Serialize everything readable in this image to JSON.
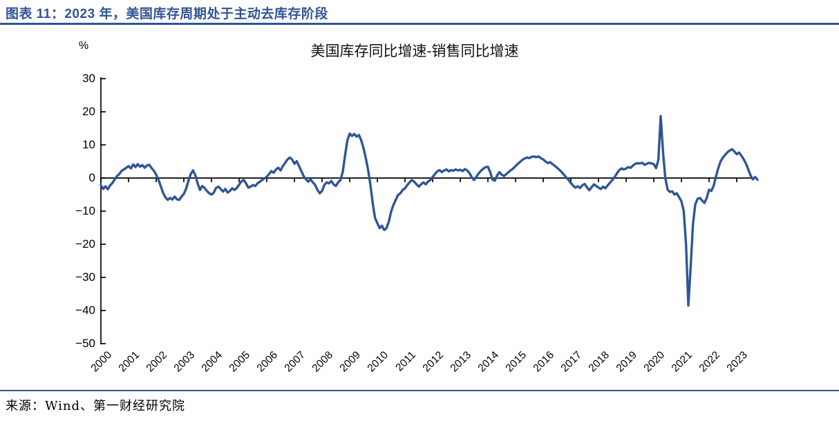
{
  "header": {
    "title": "图表 11：2023 年，美国库存周期处于主动去库存阶段"
  },
  "footer": {
    "source": "来源：Wind、第一财经研究院"
  },
  "colors": {
    "accent_blue": "#2F5496",
    "line_blue": "#2F5597",
    "axis_black": "#000000"
  },
  "chart_data": {
    "type": "line",
    "title": "美国库存同比增速-销售同比增速",
    "unit_label": "%",
    "series_name": "美国库存同比增速-销售同比增速",
    "x_start": "2000-01",
    "frequency": "monthly",
    "x_tick_labels": [
      "2000",
      "2001",
      "2002",
      "2003",
      "2004",
      "2005",
      "2006",
      "2007",
      "2008",
      "2009",
      "2010",
      "2011",
      "2012",
      "2013",
      "2014",
      "2015",
      "2016",
      "2017",
      "2018",
      "2019",
      "2020",
      "2021",
      "2022",
      "2023"
    ],
    "y_ticks": [
      30,
      20,
      10,
      0,
      -10,
      -20,
      -30,
      -40,
      -50
    ],
    "ylim": [
      -50,
      30
    ],
    "grid": false,
    "legend": false,
    "line_color": "#2F5597",
    "values": [
      -2.2,
      -3.3,
      -2.5,
      -3.4,
      -2.2,
      -1.5,
      -0.4,
      0.6,
      1.2,
      2.2,
      2.6,
      3.1,
      3.6,
      2.9,
      4.1,
      3.3,
      4.2,
      3.4,
      3.9,
      3.1,
      3.8,
      4.0,
      3.0,
      2.2,
      1.0,
      -0.5,
      -2.5,
      -4.5,
      -5.8,
      -6.6,
      -6.0,
      -6.5,
      -5.6,
      -6.4,
      -6.6,
      -5.6,
      -4.8,
      -3.2,
      -0.8,
      1.2,
      2.3,
      0.8,
      -1.6,
      -3.6,
      -2.4,
      -3.0,
      -3.9,
      -4.6,
      -5.0,
      -4.4,
      -3.0,
      -2.6,
      -3.3,
      -4.1,
      -3.3,
      -4.4,
      -3.9,
      -3.1,
      -3.6,
      -3.0,
      -2.0,
      -1.0,
      -0.6,
      -1.6,
      -2.9,
      -2.6,
      -2.1,
      -2.4,
      -1.6,
      -1.1,
      -0.6,
      -0.1,
      0.4,
      1.2,
      2.1,
      1.6,
      2.6,
      3.1,
      2.3,
      3.6,
      4.6,
      5.6,
      6.2,
      5.6,
      4.3,
      5.1,
      3.6,
      2.1,
      0.6,
      -0.4,
      -1.1,
      -0.4,
      -1.3,
      -2.1,
      -3.6,
      -4.6,
      -3.9,
      -2.1,
      -1.3,
      -1.6,
      -0.9,
      -1.9,
      -2.4,
      -1.3,
      -0.6,
      1.9,
      6.9,
      11.4,
      13.4,
      12.7,
      13.3,
      12.5,
      13.0,
      11.4,
      9.0,
      6.0,
      2.4,
      -2.1,
      -7.6,
      -12.1,
      -13.6,
      -15.1,
      -14.4,
      -15.7,
      -15.1,
      -13.1,
      -10.1,
      -8.1,
      -6.6,
      -5.1,
      -4.6,
      -3.6,
      -3.1,
      -2.1,
      -1.3,
      -0.6,
      -1.1,
      -1.9,
      -2.6,
      -1.9,
      -1.3,
      -1.9,
      -1.1,
      -0.6,
      0.3,
      1.2,
      2.0,
      2.4,
      1.8,
      2.3,
      2.6,
      2.0,
      2.4,
      2.2,
      2.6,
      2.3,
      2.5,
      2.1,
      2.7,
      2.3,
      1.5,
      0.2,
      -0.6,
      0.4,
      1.4,
      2.2,
      2.8,
      3.3,
      3.4,
      1.8,
      -0.5,
      -0.8,
      0.8,
      1.8,
      1.0,
      0.6,
      1.2,
      1.8,
      2.4,
      2.9,
      3.6,
      4.3,
      4.9,
      5.5,
      5.9,
      6.2,
      6.0,
      6.4,
      6.5,
      6.3,
      6.5,
      6.0,
      5.6,
      5.0,
      4.5,
      4.8,
      4.2,
      3.7,
      3.1,
      2.5,
      1.8,
      1.0,
      0.2,
      -0.6,
      -1.5,
      -2.3,
      -2.9,
      -2.5,
      -3.0,
      -2.2,
      -1.8,
      -2.8,
      -3.7,
      -2.8,
      -1.9,
      -2.4,
      -2.9,
      -3.3,
      -2.6,
      -3.1,
      -2.2,
      -1.4,
      -0.6,
      0.3,
      1.4,
      2.4,
      2.9,
      2.6,
      2.9,
      3.3,
      3.1,
      3.8,
      4.3,
      4.5,
      4.4,
      4.6,
      4.0,
      4.3,
      4.6,
      4.4,
      4.2,
      3.0,
      5.5,
      18.7,
      8.0,
      0.0,
      -3.5,
      -4.2,
      -4.0,
      -5.0,
      -4.6,
      -5.8,
      -7.0,
      -10.0,
      -20.0,
      -38.5,
      -27.0,
      -14.0,
      -8.0,
      -6.3,
      -6.0,
      -6.8,
      -7.5,
      -6.0,
      -3.5,
      -3.9,
      -2.3,
      0.5,
      3.0,
      5.0,
      6.2,
      7.0,
      7.8,
      8.3,
      8.7,
      8.0,
      7.2,
      7.7,
      6.8,
      5.7,
      4.4,
      2.6,
      0.8,
      -0.4,
      0.3,
      -0.5
    ]
  }
}
